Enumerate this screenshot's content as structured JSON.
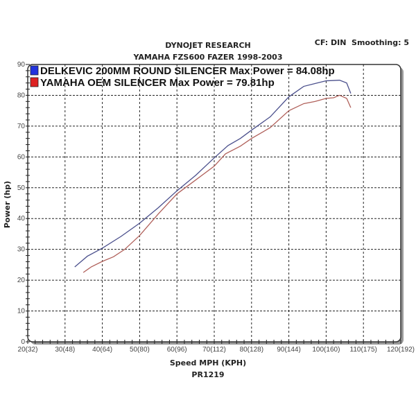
{
  "header": {
    "title": "DYNOJET RESEARCH",
    "subtitle": "YAMAHA FZS600 FAZER 1998-2003",
    "settings": "CF: DIN  Smoothing: 5",
    "footer": "PR1219"
  },
  "chart_data": {
    "type": "line",
    "title": "DYNOJET RESEARCH",
    "subtitle": "YAMAHA FZS600 FAZER 1998-2003",
    "xlabel": "Speed MPH (KPH)",
    "ylabel": "Power (hp)",
    "xlim": [
      20,
      120
    ],
    "ylim": [
      0,
      90
    ],
    "grid": true,
    "legend_position": "top-left",
    "x_ticks": [
      20,
      30,
      40,
      50,
      60,
      70,
      80,
      90,
      100,
      110,
      120
    ],
    "x_tick_labels": [
      "20(32)",
      "30(48)",
      "40(64)",
      "50(80)",
      "60(96)",
      "70(112)",
      "80(128)",
      "90(144)",
      "100(160)",
      "110(175)",
      "120(192)"
    ],
    "y_ticks": [
      0,
      10,
      20,
      30,
      40,
      50,
      60,
      70,
      80,
      90
    ],
    "y_tick_labels": [
      "0",
      "10",
      "20",
      "30",
      "40",
      "50",
      "60",
      "70",
      "80",
      "90"
    ],
    "series": [
      {
        "name": "DELKEVIC 200MM ROUND SILENCER Max Power = 84.08hp",
        "color": "#4a4f8c",
        "swatch": "#2233dd",
        "x": [
          32.6,
          36,
          40,
          45,
          50,
          55,
          60,
          65,
          70,
          73.7,
          77,
          80,
          85,
          90,
          94,
          97,
          100,
          103.6,
          105.5,
          106.6
        ],
        "y": [
          24.3,
          27.8,
          30.4,
          34.2,
          38.5,
          43.5,
          49,
          54,
          59.7,
          63.7,
          66,
          68.7,
          73,
          79.5,
          82.9,
          83.8,
          84.7,
          84.9,
          84,
          80.6
        ]
      },
      {
        "name": "YAMAHA OEM SILENCER Max Power = 79.81hp",
        "color": "#b0605a",
        "swatch": "#dd2222",
        "x": [
          34.9,
          37,
          40,
          43,
          46,
          50,
          55,
          60,
          65,
          70,
          73,
          77,
          80,
          85,
          90,
          94,
          97,
          100,
          102,
          103.6,
          105.5,
          106.6
        ],
        "y": [
          22.5,
          24.3,
          26.1,
          27.6,
          30,
          34.5,
          41.5,
          48,
          52.5,
          57,
          61,
          63.5,
          66,
          69.5,
          75,
          77.3,
          78,
          79,
          79.2,
          80,
          79,
          76
        ]
      }
    ]
  }
}
